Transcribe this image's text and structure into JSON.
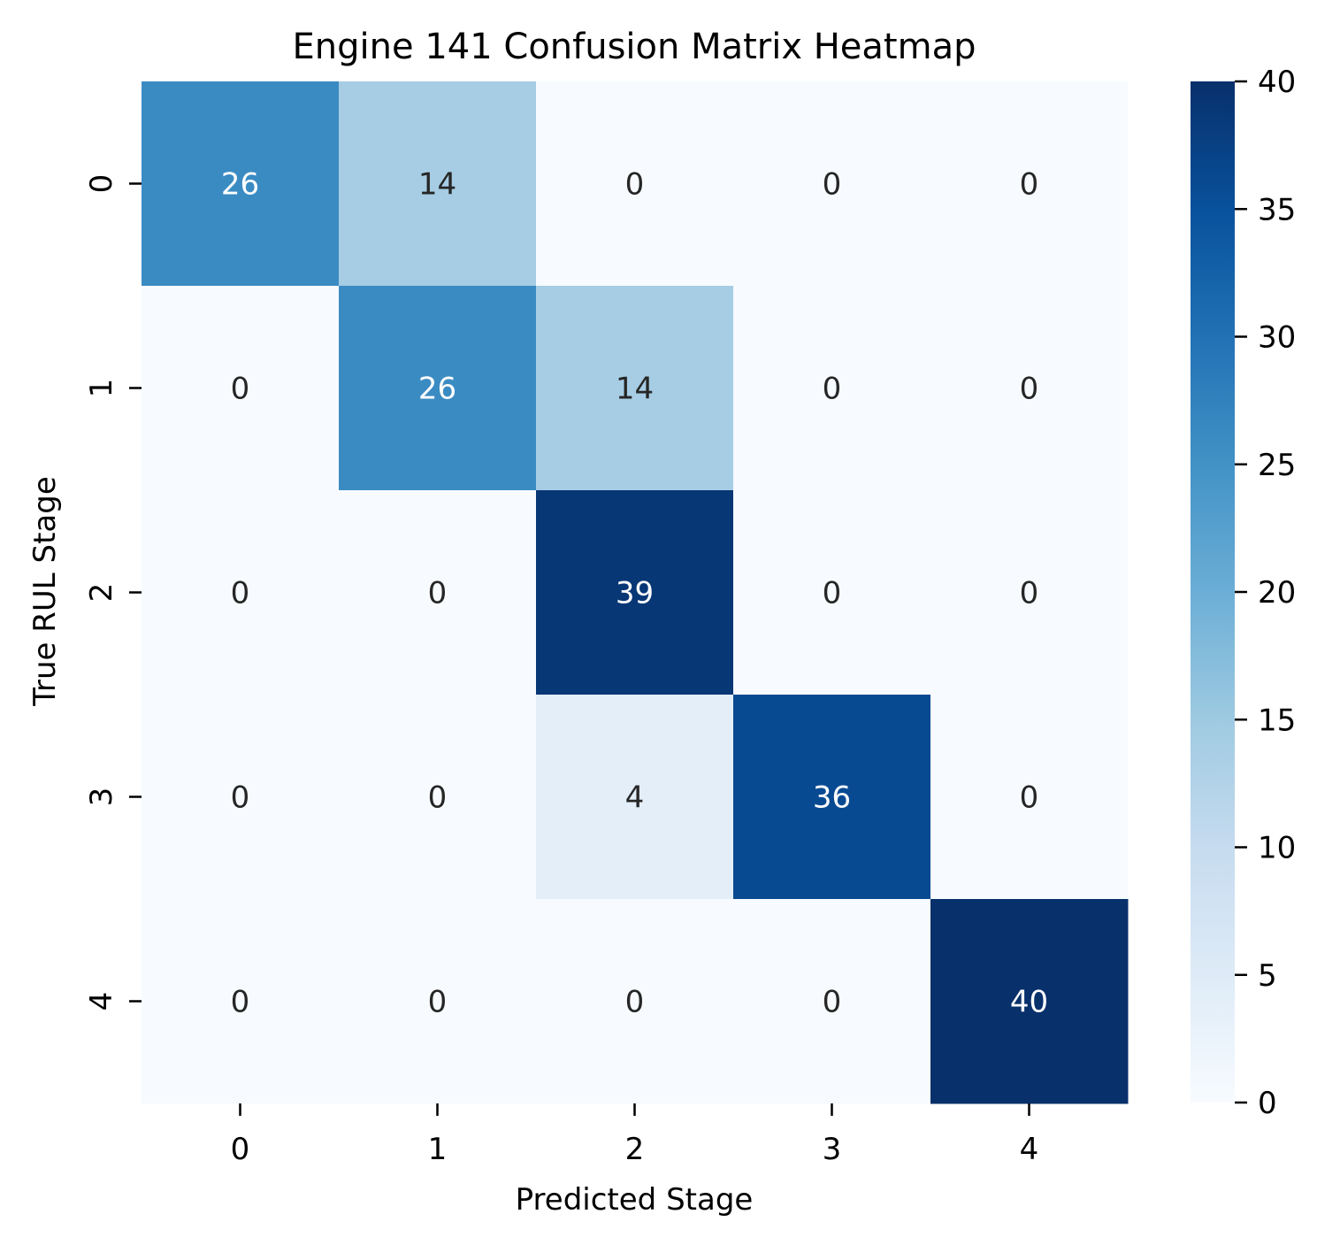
{
  "chart_data": {
    "type": "heatmap",
    "title": "Engine 141 Confusion Matrix Heatmap",
    "xlabel": "Predicted Stage",
    "ylabel": "True RUL Stage",
    "x_categories": [
      "0",
      "1",
      "2",
      "3",
      "4"
    ],
    "y_categories": [
      "0",
      "1",
      "2",
      "3",
      "4"
    ],
    "values": [
      [
        26,
        14,
        0,
        0,
        0
      ],
      [
        0,
        26,
        14,
        0,
        0
      ],
      [
        0,
        0,
        39,
        0,
        0
      ],
      [
        0,
        0,
        4,
        36,
        0
      ],
      [
        0,
        0,
        0,
        0,
        40
      ]
    ],
    "colormap": "Blues",
    "color_range": [
      0,
      40
    ],
    "colorbar": {
      "ticks": [
        0,
        5,
        10,
        15,
        20,
        25,
        30,
        35,
        40
      ],
      "tick_labels": [
        "0",
        "5",
        "10",
        "15",
        "20",
        "25",
        "30",
        "35",
        "40"
      ]
    },
    "colors": {
      "low": "#f7fbff",
      "high": "#08306b",
      "text_dark": "#262626",
      "text_light": "#ffffff"
    }
  }
}
